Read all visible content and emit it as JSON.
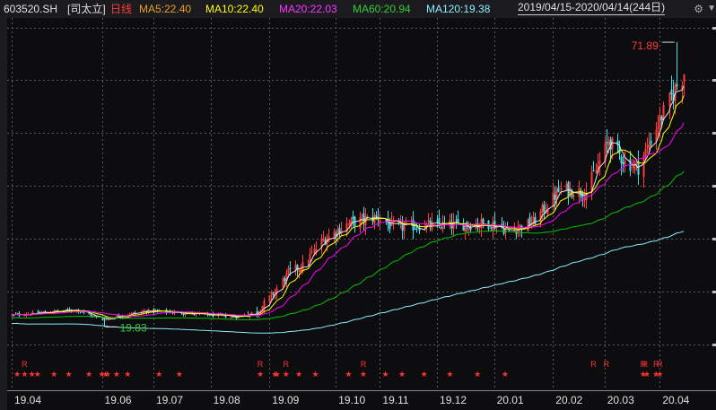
{
  "header": {
    "code": "603520.SH",
    "name": "[司太立]",
    "period": "日线",
    "ma5": "MA5:22.40",
    "ma10": "MA10:22.40",
    "ma20": "MA20:22.03",
    "ma60": "MA60:20.94",
    "ma120": "MA120:19.38",
    "range": "2019/04/15-2020/04/14(244日)"
  },
  "colors": {
    "background": "#0d0d0f",
    "grid": "#5a5a5a",
    "up": "#ff3b3b",
    "down": "#40e0e8",
    "ma5": "#e6e6e6",
    "ma10": "#ffff00",
    "ma20": "#ff00ff",
    "ma60": "#00c000",
    "ma120": "#88eeff",
    "star": "#ff3333"
  },
  "icons": {
    "settings": "gear-icon",
    "menu": "triangle-down-icon"
  },
  "annotations": {
    "high": "71.89",
    "low": "19.83"
  },
  "chart_data": {
    "type": "candlestick",
    "x_tick_labels": [
      "19.04",
      "19.06",
      "19.07",
      "19.08",
      "19.09",
      "19.10",
      "19.11",
      "19.12",
      "20.01",
      "20.02",
      "20.03",
      "20.04"
    ],
    "x_tick_dates": [
      "2019-04-15",
      "2019-06-03",
      "2019-07-01",
      "2019-08-01",
      "2019-09-02",
      "2019-10-08",
      "2019-11-01",
      "2019-12-02",
      "2020-01-02",
      "2020-02-03",
      "2020-03-02",
      "2020-04-01"
    ],
    "price_range": [
      14,
      76
    ],
    "high_value": 71.89,
    "low_value": 19.83,
    "series": [
      {
        "name": "MA5",
        "value": 22.4
      },
      {
        "name": "MA10",
        "value": 22.4
      },
      {
        "name": "MA20",
        "value": 22.03
      },
      {
        "name": "MA60",
        "value": 20.94
      },
      {
        "name": "MA120",
        "value": 19.38
      }
    ],
    "close_anchors": [
      [
        "2019-04-15",
        22.0
      ],
      [
        "2019-05-06",
        22.6
      ],
      [
        "2019-05-20",
        23.0
      ],
      [
        "2019-06-03",
        21.2
      ],
      [
        "2019-06-14",
        22.0
      ],
      [
        "2019-06-28",
        22.8
      ],
      [
        "2019-07-12",
        22.5
      ],
      [
        "2019-07-31",
        22.0
      ],
      [
        "2019-08-15",
        21.7
      ],
      [
        "2019-08-26",
        22.6
      ],
      [
        "2019-09-05",
        26.3
      ],
      [
        "2019-09-12",
        29.8
      ],
      [
        "2019-09-20",
        31.0
      ],
      [
        "2019-09-30",
        35.5
      ],
      [
        "2019-10-15",
        38.8
      ],
      [
        "2019-10-31",
        40.0
      ],
      [
        "2019-11-08",
        38.0
      ],
      [
        "2019-11-25",
        38.4
      ],
      [
        "2019-12-13",
        38.5
      ],
      [
        "2019-12-31",
        38.8
      ],
      [
        "2020-01-10",
        37.4
      ],
      [
        "2020-01-23",
        39.0
      ],
      [
        "2020-02-07",
        45.0
      ],
      [
        "2020-02-21",
        44.5
      ],
      [
        "2020-03-04",
        54.0
      ],
      [
        "2020-03-13",
        50.0
      ],
      [
        "2020-03-20",
        49.0
      ],
      [
        "2020-03-31",
        57.0
      ],
      [
        "2020-04-10",
        64.0
      ],
      [
        "2020-04-14",
        66.0
      ]
    ],
    "signals": {
      "stars": [
        "2019-04-18",
        "2019-04-22",
        "2019-04-26",
        "2019-04-29",
        "2019-05-08",
        "2019-05-16",
        "2019-05-27",
        "2019-06-03",
        "2019-06-05",
        "2019-06-06",
        "2019-06-11",
        "2019-06-17",
        "2019-07-04",
        "2019-07-15",
        "2019-08-28",
        "2019-09-05",
        "2019-09-06",
        "2019-09-11",
        "2019-09-18",
        "2019-09-27",
        "2019-10-15",
        "2019-10-23",
        "2019-11-04",
        "2019-11-13",
        "2019-11-25",
        "2019-12-09",
        "2019-12-24",
        "2020-01-08"
      ],
      "r_marks": [
        "2019-04-22",
        "2019-08-28",
        "2019-09-11",
        "2019-10-23",
        "2020-02-25",
        "2020-03-03",
        "2020-03-23",
        "2020-03-24",
        "2020-03-30",
        "2020-04-01"
      ],
      "stars_2020": [
        "2020-03-23",
        "2020-03-25",
        "2020-03-30",
        "2020-04-01"
      ]
    }
  }
}
